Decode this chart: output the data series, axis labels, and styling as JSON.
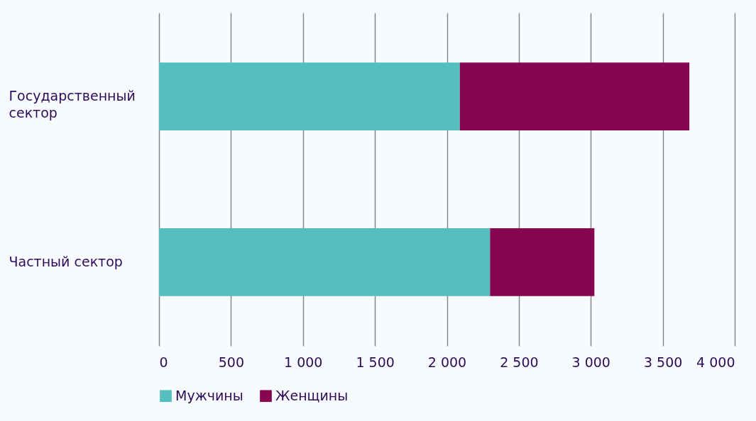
{
  "chart_data": {
    "type": "bar",
    "orientation": "horizontal",
    "stacked": true,
    "categories": [
      "Государственный сектор",
      "Частный сектор"
    ],
    "series": [
      {
        "name": "Мужчины",
        "color": "#55bfbf",
        "values": [
          2090,
          2300
        ]
      },
      {
        "name": "Женщины",
        "color": "#870650",
        "values": [
          1595,
          725
        ]
      }
    ],
    "xlim": [
      0,
      4000
    ],
    "xticks": [
      0,
      500,
      1000,
      1500,
      2000,
      2500,
      3000,
      3500,
      4000
    ],
    "grid": "x",
    "legend": "bottom"
  }
}
